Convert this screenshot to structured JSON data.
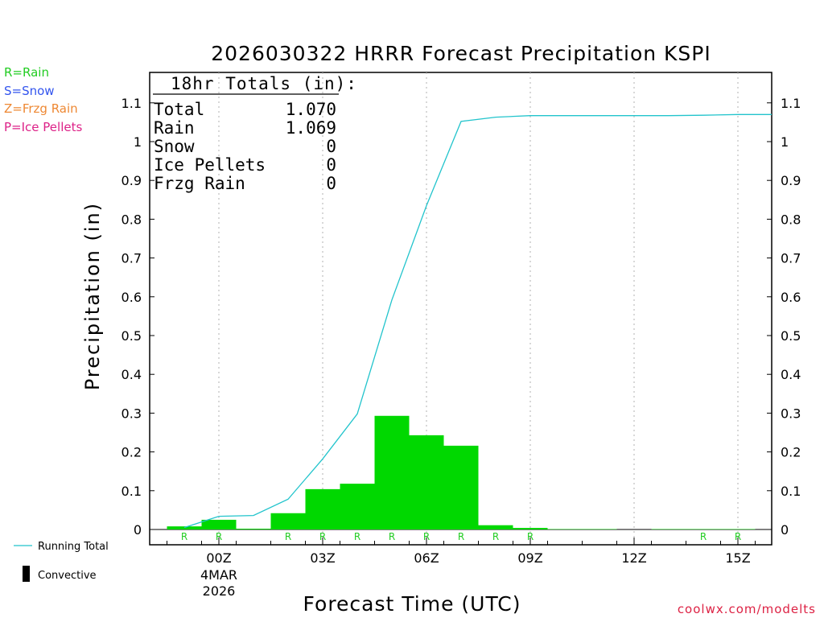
{
  "chart_data": {
    "type": "bar",
    "title": "2026030322 HRRR Forecast Precipitation KSPI",
    "xlabel": "Forecast Time (UTC)",
    "ylabel": "Precipitation (in)",
    "ylim": [
      0,
      1.18
    ],
    "y_ticks": [
      "0",
      "0.1",
      "0.2",
      "0.3",
      "0.4",
      "0.5",
      "0.6",
      "0.7",
      "0.8",
      "0.9",
      "1",
      "1.1"
    ],
    "x_ticks": [
      {
        "hour": 0,
        "label": "00Z",
        "sublabel1": "4MAR",
        "sublabel2": "2026"
      },
      {
        "hour": 3,
        "label": "03Z"
      },
      {
        "hour": 6,
        "label": "06Z"
      },
      {
        "hour": 9,
        "label": "09Z"
      },
      {
        "hour": 12,
        "label": "12Z"
      },
      {
        "hour": 15,
        "label": "15Z"
      }
    ],
    "x_range_hours": [
      -2,
      16
    ],
    "hourly_hours": [
      -1,
      0,
      1,
      2,
      3,
      4,
      5,
      6,
      7,
      8,
      9,
      10,
      11,
      12,
      13,
      14,
      15,
      16
    ],
    "hourly_precip": [
      0.008,
      0.025,
      0.002,
      0.042,
      0.104,
      0.118,
      0.293,
      0.243,
      0.216,
      0.011,
      0.004,
      0.001,
      0.001,
      0.0,
      0.001,
      0.001,
      0.001,
      0.0
    ],
    "precip_type": [
      "R",
      "R",
      "",
      "R",
      "R",
      "R",
      "R",
      "R",
      "R",
      "R",
      "R",
      "",
      "",
      "",
      "",
      "R",
      "R",
      ""
    ],
    "running_total_hours": [
      -1,
      0,
      1,
      2,
      3,
      4,
      5,
      6,
      7,
      8,
      9,
      10,
      11,
      12,
      13,
      14,
      15,
      16
    ],
    "running_total": [
      0.005,
      0.034,
      0.036,
      0.078,
      0.182,
      0.298,
      0.592,
      0.835,
      1.052,
      1.063,
      1.067,
      1.067,
      1.067,
      1.067,
      1.067,
      1.068,
      1.07,
      1.07
    ],
    "totals_box": {
      "header": "18hr Totals (in):",
      "rows": [
        {
          "label": "Total",
          "value": "1.070"
        },
        {
          "label": "Rain",
          "value": "1.069"
        },
        {
          "label": "Snow",
          "value": "0"
        },
        {
          "label": "Ice Pellets",
          "value": "0"
        },
        {
          "label": "Frzg Rain",
          "value": "0"
        }
      ]
    },
    "type_legend": [
      {
        "text": "R=Rain",
        "color": "#22cc22"
      },
      {
        "text": "S=Snow",
        "color": "#3355ee"
      },
      {
        "text": "Z=Frzg Rain",
        "color": "#ee8833"
      },
      {
        "text": "P=Ice Pellets",
        "color": "#dd2288"
      }
    ],
    "series_legend": {
      "running_total": "Running Total",
      "convective": "Convective"
    },
    "credit": "coolwx.com/modelts",
    "colors": {
      "bar": "#00d800",
      "line": "#22c4cc",
      "type_label": "#22cc22",
      "credit": "#dd2244",
      "grid": "#b0b0b0"
    }
  }
}
